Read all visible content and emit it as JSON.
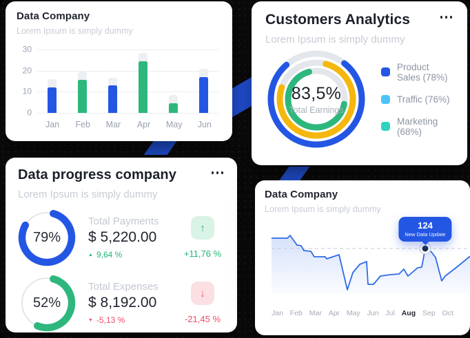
{
  "background_color": "#0b0b0c",
  "accent_blue": "#2456e4",
  "icons": {
    "menu": "ellipsis",
    "arrow_up": "↑",
    "arrow_down": "↓",
    "triangle_up": "▲",
    "triangle_down": "▼"
  },
  "cards": {
    "bar_card": {
      "title": "Data Company",
      "subtitle": "Lorem Ipsum is simply dummy"
    },
    "donut_card": {
      "title": "Customers Analytics",
      "subtitle": "Lorem Ipsum is simply dummy",
      "center_value": "83,5%",
      "center_label": "Total Earnings"
    },
    "progress_card": {
      "title": "Data progress company",
      "subtitle": "Lorem Ipsum is simply dummy"
    },
    "line_card": {
      "title": "Data Company",
      "subtitle": "Lorem Ipsum is simply dummy"
    }
  },
  "chart_data": [
    {
      "id": "monthly_bars",
      "type": "bar",
      "card": "bar_card",
      "categories": [
        "Jan",
        "Feb",
        "Mar",
        "Apr",
        "May",
        "Jun"
      ],
      "series": [
        {
          "name": "value",
          "values": [
            12,
            15.5,
            13,
            24.5,
            4.5,
            17
          ]
        },
        {
          "name": "background_track",
          "values": [
            16,
            19.5,
            16.5,
            28.5,
            8.5,
            21
          ]
        }
      ],
      "bar_colors": [
        "#2456e4",
        "#2eb77d",
        "#2456e4",
        "#2eb77d",
        "#2eb77d",
        "#2456e4"
      ],
      "track_color": "#edeff2",
      "yticks": [
        0,
        10,
        20,
        30
      ],
      "ylim": [
        0,
        30
      ],
      "grid": "dotted-horizontal",
      "legend_position": "none"
    },
    {
      "id": "customers_donut",
      "type": "donut",
      "card": "donut_card",
      "center_value": "83,5%",
      "center_label": "Total Earnings",
      "track_color": "#e3e7ec",
      "legend_position": "right",
      "rings": [
        {
          "name": "Product Sales",
          "value_pct": 78,
          "arc_color": "#2456e4",
          "legend_color": "#2456e4",
          "legend_label": "Product Sales (78%)"
        },
        {
          "name": "Traffic",
          "value_pct": 76,
          "arc_color": "#f5b70d",
          "legend_color": "#4fc3f7",
          "legend_label": "Traffic (76%)"
        },
        {
          "name": "Marketing",
          "value_pct": 68,
          "arc_color": "#2eb77d",
          "legend_color": "#2fd3c0",
          "legend_label": "Marketing (68%)"
        }
      ]
    },
    {
      "id": "progress_rows",
      "type": "progress",
      "card": "progress_card",
      "up_color": "#22b573",
      "down_color": "#ee4b63",
      "up_badge_bg": "#d9f3e6",
      "down_badge_bg": "#fcdfe3",
      "track_color": "#dce0e6",
      "rows": [
        {
          "percent": 79,
          "percent_label": "79%",
          "ring_color": "#2456e4",
          "label": "Total Payments",
          "amount": "$ 5,220.00",
          "change": "9,64 %",
          "change_dir": "up",
          "badge_change": "+11,76 %"
        },
        {
          "percent": 52,
          "percent_label": "52%",
          "ring_color": "#2eb77d",
          "label": "Total Expenses",
          "amount": "$ 8,192.00",
          "change": "-5,13 %",
          "change_dir": "down",
          "badge_change": "-21,45 %"
        }
      ]
    },
    {
      "id": "data_trend",
      "type": "line",
      "card": "line_card",
      "x_labels": [
        "Jan",
        "Feb",
        "Mar",
        "Apr",
        "May",
        "Jun",
        "Jul",
        "Aug",
        "Sep",
        "Oct"
      ],
      "highlight_label": "Aug",
      "line_color": "#2f6ae8",
      "area": true,
      "grid": "dashed-reference-line",
      "dashed_reference_y": 28,
      "baseline_y": 95,
      "view": [
        292,
        98
      ],
      "marker": {
        "x": 223,
        "y": 28,
        "tooltip_value": "124",
        "tooltip_label": "New Data Update"
      },
      "points_svg": [
        [
          0,
          13
        ],
        [
          23,
          13
        ],
        [
          27,
          9
        ],
        [
          37,
          23
        ],
        [
          43,
          24
        ],
        [
          47,
          31
        ],
        [
          57,
          32
        ],
        [
          62,
          40
        ],
        [
          78,
          40
        ],
        [
          80,
          43
        ],
        [
          95,
          38
        ],
        [
          98,
          37
        ],
        [
          110,
          88
        ],
        [
          118,
          63
        ],
        [
          128,
          51
        ],
        [
          138,
          47
        ],
        [
          140,
          80
        ],
        [
          148,
          80
        ],
        [
          158,
          68
        ],
        [
          172,
          66
        ],
        [
          185,
          65
        ],
        [
          192,
          58
        ],
        [
          198,
          68
        ],
        [
          212,
          56
        ],
        [
          218,
          55
        ],
        [
          223,
          28
        ],
        [
          232,
          33
        ],
        [
          238,
          41
        ],
        [
          247,
          75
        ],
        [
          252,
          68
        ],
        [
          265,
          58
        ],
        [
          275,
          50
        ],
        [
          287,
          40
        ],
        [
          292,
          40
        ]
      ]
    }
  ]
}
